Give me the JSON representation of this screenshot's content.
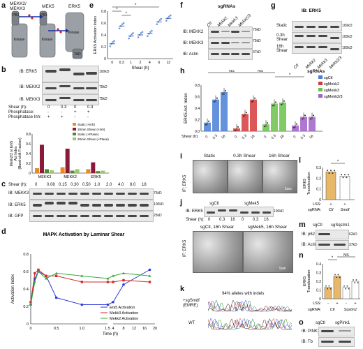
{
  "panels": {
    "a": {
      "letter": "a",
      "labels": {
        "mekk": "MEKK2/\nMEKK3",
        "mek5": "MEK5",
        "erk5": "ERK5",
        "pb1": "PB1",
        "kinase": "Kinase",
        "tad": "TAD"
      }
    },
    "b": {
      "letter": "b",
      "blots": [
        "IB: ERK5",
        "IB: MEKK2",
        "IB: MEKK3"
      ],
      "mw": [
        "100kD",
        "75kD",
        "75kD"
      ],
      "row_labels": [
        "Shear (h):",
        "Phosphatase:",
        "Phosphatase Inh:"
      ],
      "shear": [
        "0",
        "0.3",
        "0",
        "0.3"
      ],
      "phosphatase": [
        "-",
        "-",
        "+",
        "+"
      ],
      "inh": [
        "+",
        "+",
        "-",
        "-"
      ],
      "legend": [
        "Static (+Inh)",
        "20min Shear (+Inh)",
        "Static (+Ptase)",
        "20min Shear (+Ptase)"
      ],
      "ylabel": "Mekk2/3 or Erk5\nAct Index\n(Band-shift Fraction)",
      "categories": [
        "MEKK3",
        "MEKK2",
        "ERK5"
      ]
    },
    "c": {
      "letter": "c",
      "shear_label": "Shear (h):",
      "times": [
        "0",
        "0.08",
        "0.15",
        "0.30",
        "0.50",
        "1.0",
        "2.0",
        "4.0",
        "8.0",
        "18"
      ],
      "blots": [
        "IB: MEKK3",
        "IB: ERK5",
        "IB: GFP"
      ],
      "mw": [
        "75kD",
        "100kD",
        "25kD"
      ]
    },
    "d": {
      "letter": "d"
    },
    "e": {
      "letter": "e"
    },
    "f": {
      "letter": "f",
      "header": "sgRNAs",
      "lanes": [
        "Ctl",
        "Mekk2",
        "Mekk3",
        "Mekk2/3"
      ],
      "blots": [
        "IB: MEKK2",
        "IB: MEKK3",
        "IB: Actin"
      ],
      "mw": [
        "75kD",
        "75kD",
        "37kD"
      ]
    },
    "g": {
      "letter": "g",
      "header": "IB: ERK5",
      "rows": [
        "Static",
        "0.3h\nShear",
        "16h\nShear"
      ],
      "lanes": [
        "Ctl",
        "Mekk2",
        "Mekk3",
        "Mekk2/3"
      ],
      "footer": "sgRNAs",
      "mw": [
        "100kD",
        "100kD",
        "100kD"
      ]
    },
    "h": {
      "letter": "h"
    },
    "i": {
      "letter": "i",
      "titles": [
        "Static",
        "0.3h Shear",
        "16h Shear"
      ],
      "side": "IF: ERK5",
      "scale": "5um"
    },
    "j": {
      "letter": "j",
      "blot": "IB: ERK5",
      "groups": [
        "sgCtl",
        "sgMek5"
      ],
      "shear_label": "Shear (h):",
      "shear": [
        "0",
        "0.3",
        "16",
        "0",
        "0.3",
        "16"
      ],
      "mw": "100kD",
      "micro_titles": [
        "sgCtl, 16h Shear",
        "sgMek5, 16h Shear"
      ],
      "side": "IF: ERK5",
      "scale": "5um"
    },
    "k": {
      "letter": "k",
      "title": "94% alleles with indels",
      "row1": "+sgSmdf\n(EMRE)",
      "row2": "WT"
    },
    "l": {
      "letter": "l"
    },
    "m": {
      "letter": "m",
      "groups": [
        "sgCtl",
        "sgSqstm1"
      ],
      "blots": [
        "IB: p62",
        "IB: Actin"
      ],
      "mw": [
        "62kD",
        "37kD"
      ]
    },
    "n": {
      "letter": "n"
    },
    "o": {
      "letter": "o",
      "groups": [
        "sgCtl",
        "sgPink1"
      ],
      "blots": [
        "IB: PINK1",
        "IB: Tb"
      ]
    }
  },
  "chart_data": [
    {
      "id": "b-bar",
      "type": "bar",
      "categories": [
        "MEKK3",
        "MEKK2",
        "ERK5"
      ],
      "series": [
        {
          "name": "Static (+Inh)",
          "values": [
            0.1,
            0.12,
            0.08
          ],
          "color": "#e8892a"
        },
        {
          "name": "20min Shear (+Inh)",
          "values": [
            0.58,
            0.5,
            0.22
          ],
          "color": "#8b1a3a"
        },
        {
          "name": "Static (+Ptase)",
          "values": [
            0.08,
            0.05,
            0.04
          ],
          "color": "#4e8a3a"
        },
        {
          "name": "20min Shear (+Ptase)",
          "values": [
            0.06,
            0.08,
            0.05
          ],
          "color": "#a0c46e"
        }
      ],
      "ylim": [
        0,
        0.8
      ],
      "yticks": [
        "0",
        "0.2",
        "0.4",
        "0.6",
        "0.8"
      ]
    },
    {
      "id": "d-line",
      "type": "line",
      "title": "MAPK Activation by Laminar Shear",
      "xlabel": "Time (h)",
      "ylabel": "Activation Index",
      "ylim": [
        0,
        0.8
      ],
      "yticks": [
        "0",
        "0.2",
        "0.4",
        "0.6",
        "0.8"
      ],
      "xticks_left": [
        "0",
        "0.5",
        "1.0",
        "1.5"
      ],
      "xticks_right": [
        "4",
        "8",
        "12",
        "16",
        "20"
      ],
      "series": [
        {
          "name": "Erk5 Activation",
          "color": "#2a3bd6",
          "x": [
            0,
            0.08,
            0.15,
            0.3,
            0.5,
            1.0,
            2,
            4,
            8,
            18
          ],
          "y": [
            0.22,
            0.52,
            0.6,
            0.55,
            0.3,
            0.22,
            0.22,
            0.25,
            0.45,
            0.62
          ]
        },
        {
          "name": "Mekk3 Activation",
          "color": "#d62a2a",
          "x": [
            0,
            0.08,
            0.15,
            0.3,
            0.5,
            1.0,
            2,
            4,
            8,
            18
          ],
          "y": [
            0.25,
            0.58,
            0.62,
            0.55,
            0.55,
            0.48,
            0.48,
            0.48,
            0.5,
            0.48
          ]
        },
        {
          "name": "Mekk2 Activation",
          "color": "#3aa83a",
          "x": [
            0,
            0.08,
            0.15,
            0.3,
            0.5,
            1.0,
            2,
            4,
            8,
            18
          ],
          "y": [
            0.22,
            0.48,
            0.6,
            0.52,
            0.58,
            0.55,
            0.52,
            0.55,
            0.58,
            0.55
          ]
        }
      ]
    },
    {
      "id": "e-scatter",
      "type": "scatter",
      "ylabel": "ERK5 Activation Index",
      "xlabel": "Shear (h)",
      "categories": [
        "0",
        "0.3",
        "1",
        "2",
        "4",
        "6",
        "12"
      ],
      "means": [
        0.25,
        0.55,
        0.38,
        0.4,
        0.42,
        0.62,
        0.68
      ],
      "ylim": [
        0,
        0.8
      ],
      "yticks": [
        "0",
        "0.2",
        "0.4",
        "0.6",
        "0.8"
      ]
    },
    {
      "id": "h-bar",
      "type": "bar",
      "ylabel": "ERK5 Act. Index",
      "xlabel": "Shear (h):",
      "legend": [
        "sgCtl",
        "sgMekk2",
        "sgMekk3",
        "sgMekk2/3"
      ],
      "groups": [
        {
          "name": "sgCtl",
          "color": "#4a7fd6",
          "values": [
            0.15,
            0.55,
            0.68
          ]
        },
        {
          "name": "sgMekk2",
          "color": "#d63a3a",
          "values": [
            0.05,
            0.3,
            0.55
          ]
        },
        {
          "name": "sgMekk3",
          "color": "#6ac24a",
          "values": [
            0.12,
            0.48,
            0.5
          ]
        },
        {
          "name": "sgMekk2/3",
          "color": "#a060c8",
          "values": [
            0.1,
            0.25,
            0.25
          ]
        }
      ],
      "xticks": [
        "0",
        "0.3",
        "16"
      ],
      "ylim": [
        0,
        0.8
      ],
      "yticks": [
        "0.0",
        "0.2",
        "0.4",
        "0.6",
        "0.8"
      ],
      "sig": [
        "NS",
        "NS",
        "*"
      ]
    },
    {
      "id": "l-bar",
      "type": "bar",
      "ylabel": "ERK5\nTranslocation",
      "categories": [
        "Ctl",
        "Smdf"
      ],
      "values": [
        0.26,
        0.22
      ],
      "ylim": [
        0,
        0.3
      ],
      "yticks": [
        "0",
        "0.1",
        "0.2",
        "0.3"
      ],
      "row1_label": "LSS:",
      "row2_label": "sgRNA:",
      "row1": [
        "+",
        "+"
      ],
      "row2": [
        "Ctl",
        "Smdf"
      ],
      "sig": "*",
      "color": "#e8b86a"
    },
    {
      "id": "n-bar",
      "type": "bar",
      "ylabel": "ERK5\nTranslocation",
      "values": [
        0.13,
        0.26,
        0.13,
        0.2
      ],
      "ylim": [
        0,
        0.4
      ],
      "yticks": [
        "0",
        "0.1",
        "0.2",
        "0.3",
        "0.4"
      ],
      "row1_label": "LSS:",
      "row2_label": "sgRNA:",
      "row1": [
        "-",
        "+",
        "-",
        "+"
      ],
      "row2": [
        "Ctl",
        "Sqstm1"
      ],
      "sig": [
        "*",
        "NS"
      ],
      "color": "#e8b86a"
    }
  ]
}
